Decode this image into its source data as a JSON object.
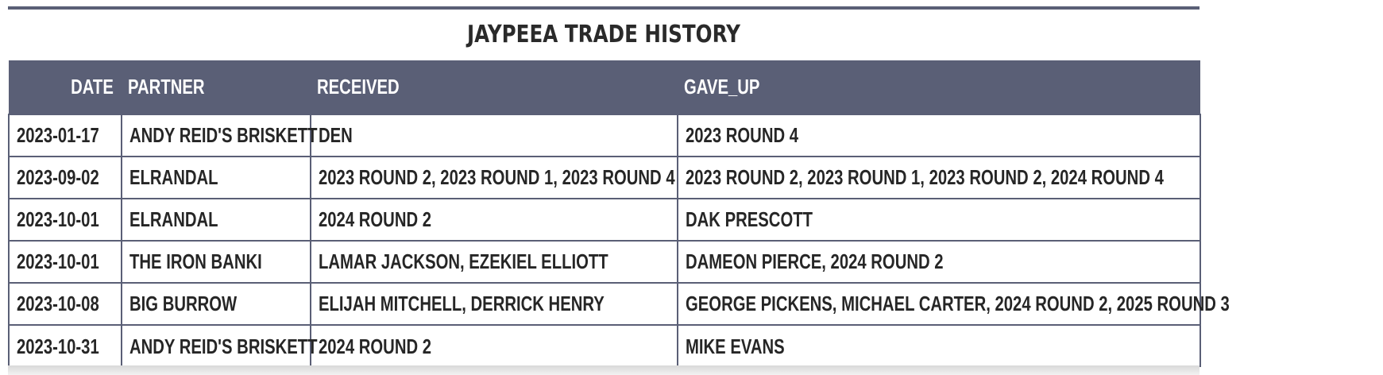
{
  "title": "JAYPEEA TRADE HISTORY",
  "columns": {
    "date": "DATE",
    "partner": "PARTNER",
    "received": "RECEIVED",
    "gave_up": "GAVE_UP"
  },
  "rows": [
    {
      "date": "2023-01-17",
      "partner": "ANDY REID'S BRISKETT",
      "received": "DEN",
      "gave_up": "2023 ROUND 4"
    },
    {
      "date": "2023-09-02",
      "partner": "ELRANDAL",
      "received": "2023 ROUND 2, 2023 ROUND 1, 2023 ROUND 4",
      "gave_up": "2023 ROUND 2, 2023 ROUND 1, 2023 ROUND 2, 2024 ROUND 4"
    },
    {
      "date": "2023-10-01",
      "partner": "ELRANDAL",
      "received": "2024 ROUND 2",
      "gave_up": "DAK PRESCOTT"
    },
    {
      "date": "2023-10-01",
      "partner": "THE IRON BANKI",
      "received": "LAMAR JACKSON, EZEKIEL ELLIOTT",
      "gave_up": "DAMEON PIERCE, 2024 ROUND 2"
    },
    {
      "date": "2023-10-08",
      "partner": "BIG BURROW",
      "received": "ELIJAH MITCHELL, DERRICK HENRY",
      "gave_up": "GEORGE PICKENS, MICHAEL CARTER, 2024 ROUND 2, 2025 ROUND 3"
    },
    {
      "date": "2023-10-31",
      "partner": "ANDY REID'S BRISKETT",
      "received": "2024 ROUND 2",
      "gave_up": "MIKE EVANS"
    }
  ],
  "colors": {
    "header_bg": "#5a5f76",
    "header_text": "#ffffff",
    "border": "#5a5f76"
  }
}
